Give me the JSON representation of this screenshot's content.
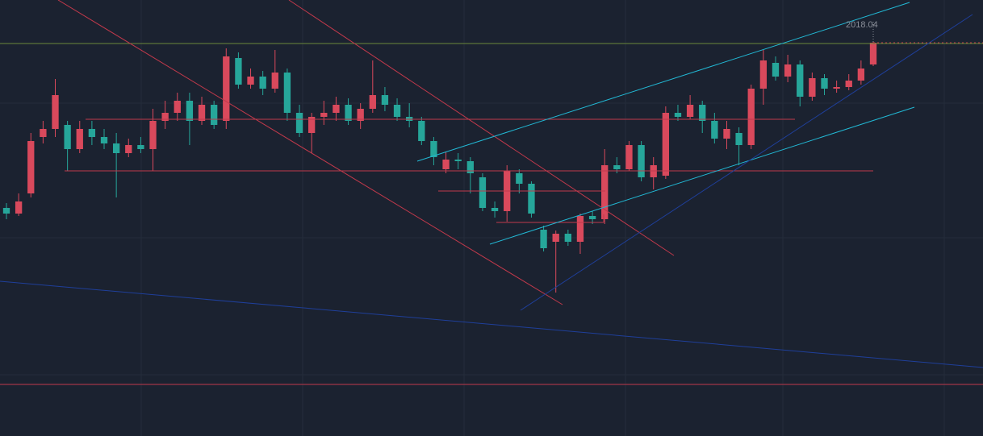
{
  "chart_data": {
    "type": "candlestick",
    "annotation": "2018.04",
    "ylim": [
      1530,
      2071
    ],
    "up_color": "#d9495c",
    "down_color": "#26a69a",
    "open": [
      1813,
      1806,
      1831,
      1901,
      1911,
      1916,
      1886,
      1911,
      1901,
      1893,
      1881,
      1891,
      1886,
      1921,
      1931,
      1946,
      1921,
      1941,
      1921,
      1999,
      1966,
      1976,
      1961,
      1981,
      1931,
      1906,
      1926,
      1931,
      1941,
      1921,
      1936,
      1953,
      1941,
      1926,
      1921,
      1896,
      1861,
      1873,
      1871,
      1851,
      1813,
      1809,
      1856,
      1843,
      1786,
      1771,
      1781,
      1771,
      1803,
      1799,
      1866,
      1861,
      1891,
      1851,
      1853,
      1931,
      1926,
      1941,
      1921,
      1899,
      1906,
      1891,
      1961,
      1993,
      1976,
      1991,
      1951,
      1974,
      1961,
      1963,
      1971,
      1991
    ],
    "high": [
      1819,
      1831,
      1906,
      1921,
      1973,
      1921,
      1921,
      1921,
      1911,
      1906,
      1899,
      1901,
      1936,
      1946,
      1956,
      1956,
      1951,
      1946,
      2011,
      2006,
      1986,
      1983,
      2009,
      1986,
      1941,
      1931,
      1946,
      1951,
      1949,
      1943,
      1996,
      1963,
      1949,
      1943,
      1926,
      1901,
      1883,
      1881,
      1876,
      1856,
      1821,
      1866,
      1861,
      1846,
      1791,
      1785,
      1786,
      1806,
      1809,
      1886,
      1876,
      1896,
      1896,
      1876,
      1939,
      1941,
      1953,
      1946,
      1931,
      1921,
      1913,
      1966,
      2009,
      2001,
      2003,
      1996,
      1981,
      1979,
      1971,
      1979,
      1996,
      2019
    ],
    "low": [
      1799,
      1803,
      1826,
      1893,
      1901,
      1859,
      1881,
      1891,
      1886,
      1826,
      1876,
      1881,
      1859,
      1911,
      1921,
      1891,
      1916,
      1911,
      1911,
      1961,
      1961,
      1953,
      1956,
      1921,
      1901,
      1881,
      1916,
      1921,
      1916,
      1911,
      1931,
      1933,
      1921,
      1913,
      1891,
      1866,
      1856,
      1861,
      1831,
      1809,
      1801,
      1796,
      1831,
      1801,
      1759,
      1708,
      1766,
      1756,
      1793,
      1793,
      1856,
      1859,
      1846,
      1836,
      1849,
      1921,
      1923,
      1906,
      1893,
      1886,
      1866,
      1886,
      1941,
      1971,
      1969,
      1939,
      1946,
      1953,
      1956,
      1959,
      1966,
      1989
    ],
    "close": [
      1806,
      1821,
      1896,
      1911,
      1953,
      1886,
      1911,
      1901,
      1893,
      1881,
      1891,
      1886,
      1921,
      1931,
      1946,
      1921,
      1941,
      1916,
      2001,
      1966,
      1976,
      1961,
      1981,
      1931,
      1906,
      1926,
      1931,
      1941,
      1921,
      1936,
      1953,
      1941,
      1926,
      1921,
      1896,
      1876,
      1873,
      1871,
      1856,
      1813,
      1809,
      1859,
      1843,
      1806,
      1763,
      1781,
      1771,
      1803,
      1799,
      1866,
      1861,
      1891,
      1851,
      1866,
      1931,
      1926,
      1941,
      1921,
      1899,
      1911,
      1891,
      1961,
      1996,
      1976,
      1991,
      1951,
      1974,
      1961,
      1963,
      1971,
      1986,
      2018
    ]
  }
}
